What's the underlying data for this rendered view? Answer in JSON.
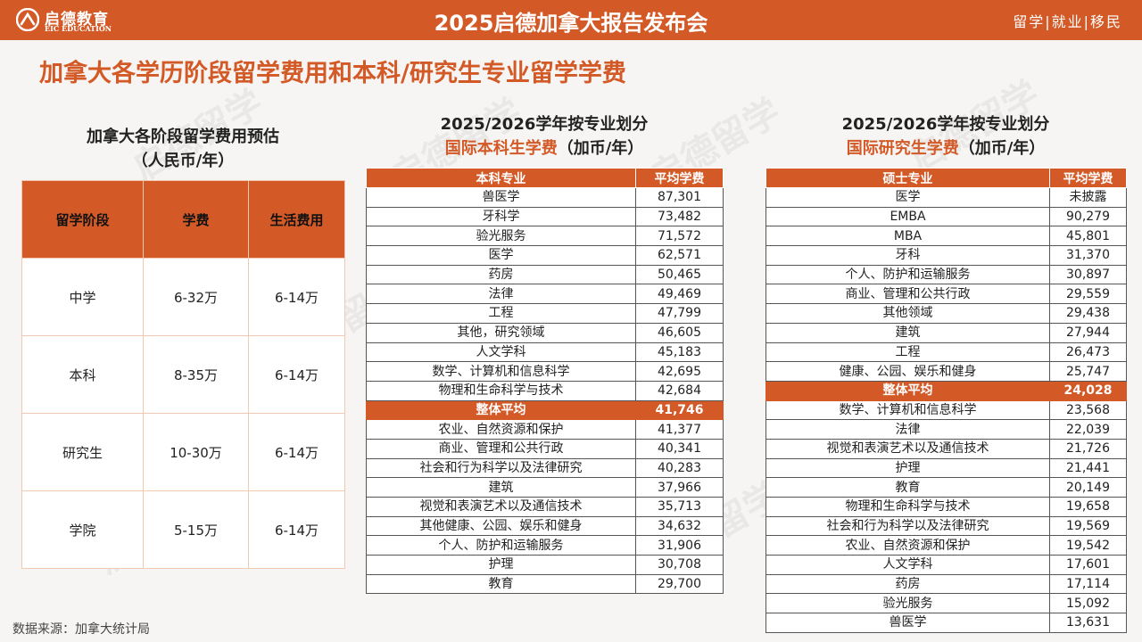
{
  "header": {
    "logo_cn": "启德教育",
    "logo_en": "EIC EDUCATION",
    "event_title": "2025启德加拿大报告发布会",
    "tags": "留学|就业|移民"
  },
  "page_title": "加拿大各学历阶段留学费用和本科/研究生专业留学学费",
  "section1": {
    "title_line1": "加拿大各阶段留学费用预估",
    "title_line2": "（人民币/年）",
    "headers": [
      "留学阶段",
      "学费",
      "生活费用"
    ],
    "rows": [
      [
        "中学",
        "6-32万",
        "6-14万"
      ],
      [
        "本科",
        "8-35万",
        "6-14万"
      ],
      [
        "研究生",
        "10-30万",
        "6-14万"
      ],
      [
        "学院",
        "5-15万",
        "6-14万"
      ]
    ]
  },
  "section2": {
    "title_line1": "2025/2026学年按专业划分",
    "title_line2_orange": "国际本科生学费",
    "title_line2_rest": "（加币/年）",
    "headers": [
      "本科专业",
      "平均学费"
    ],
    "rows": [
      [
        "兽医学",
        "87,301"
      ],
      [
        "牙科学",
        "73,482"
      ],
      [
        "验光服务",
        "71,572"
      ],
      [
        "医学",
        "62,571"
      ],
      [
        "药房",
        "50,465"
      ],
      [
        "法律",
        "49,469"
      ],
      [
        "工程",
        "47,799"
      ],
      [
        "其他，研究领域",
        "46,605"
      ],
      [
        "人文学科",
        "45,183"
      ],
      [
        "数学、计算机和信息科学",
        "42,695"
      ],
      [
        "物理和生命科学与技术",
        "42,684"
      ],
      [
        "整体平均",
        "41,746"
      ],
      [
        "农业、自然资源和保护",
        "41,377"
      ],
      [
        "商业、管理和公共行政",
        "40,341"
      ],
      [
        "社会和行为科学以及法律研究",
        "40,283"
      ],
      [
        "建筑",
        "37,966"
      ],
      [
        "视觉和表演艺术以及通信技术",
        "35,713"
      ],
      [
        "其他健康、公园、娱乐和健身",
        "34,632"
      ],
      [
        "个人、防护和运输服务",
        "31,906"
      ],
      [
        "护理",
        "30,708"
      ],
      [
        "教育",
        "29,700"
      ]
    ],
    "highlight_index": 11
  },
  "section3": {
    "title_line1": "2025/2026学年按专业划分",
    "title_line2_orange": "国际研究生学费",
    "title_line2_rest": "（加币/年）",
    "headers": [
      "硕士专业",
      "平均学费"
    ],
    "rows": [
      [
        "医学",
        "未披露"
      ],
      [
        "EMBA",
        "90,279"
      ],
      [
        "MBA",
        "45,801"
      ],
      [
        "牙科",
        "31,370"
      ],
      [
        "个人、防护和运输服务",
        "30,897"
      ],
      [
        "商业、管理和公共行政",
        "29,559"
      ],
      [
        "其他领域",
        "29,438"
      ],
      [
        "建筑",
        "27,944"
      ],
      [
        "工程",
        "26,473"
      ],
      [
        "健康、公园、娱乐和健身",
        "25,747"
      ],
      [
        "整体平均",
        "24,028"
      ],
      [
        "数学、计算机和信息科学",
        "23,568"
      ],
      [
        "法律",
        "22,039"
      ],
      [
        "视觉和表演艺术以及通信技术",
        "21,726"
      ],
      [
        "护理",
        "21,441"
      ],
      [
        "教育",
        "20,149"
      ],
      [
        "物理和生命科学与技术",
        "19,658"
      ],
      [
        "社会和行为科学以及法律研究",
        "19,569"
      ],
      [
        "农业、自然资源和保护",
        "19,542"
      ],
      [
        "人文学科",
        "17,601"
      ],
      [
        "药房",
        "17,114"
      ],
      [
        "验光服务",
        "15,092"
      ],
      [
        "兽医学",
        "13,631"
      ]
    ],
    "highlight_index": 10
  },
  "source": "数据来源：加拿大统计局",
  "watermark": "启德留学",
  "colors": {
    "accent": "#d35a27"
  }
}
